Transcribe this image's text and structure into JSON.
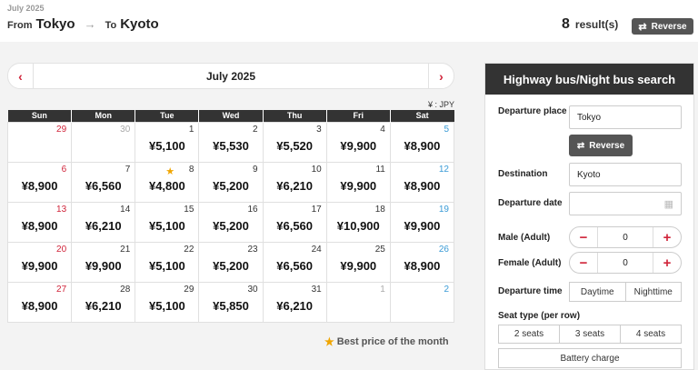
{
  "header": {
    "date_label": "July 2025",
    "from_label": "From",
    "from_city": "Tokyo",
    "arrow": "→",
    "to_label": "To",
    "to_city": "Kyoto",
    "result_count": "8",
    "result_label": "result(s)",
    "reverse_icon": "⇄",
    "reverse_label": "Reverse"
  },
  "calendar": {
    "title": "July 2025",
    "prev_icon": "‹",
    "next_icon": "›",
    "currency": "¥ : JPY",
    "weekdays": [
      "Sun",
      "Mon",
      "Tue",
      "Wed",
      "Thu",
      "Fri",
      "Sat"
    ],
    "weeks": [
      [
        {
          "day": "29",
          "price": "",
          "other": true
        },
        {
          "day": "30",
          "price": "",
          "other": true
        },
        {
          "day": "1",
          "price": "¥5,100"
        },
        {
          "day": "2",
          "price": "¥5,530"
        },
        {
          "day": "3",
          "price": "¥5,520"
        },
        {
          "day": "4",
          "price": "¥9,900"
        },
        {
          "day": "5",
          "price": "¥8,900"
        }
      ],
      [
        {
          "day": "6",
          "price": "¥8,900"
        },
        {
          "day": "7",
          "price": "¥6,560"
        },
        {
          "day": "8",
          "price": "¥4,800",
          "best": true
        },
        {
          "day": "9",
          "price": "¥5,200"
        },
        {
          "day": "10",
          "price": "¥6,210"
        },
        {
          "day": "11",
          "price": "¥9,900"
        },
        {
          "day": "12",
          "price": "¥8,900"
        }
      ],
      [
        {
          "day": "13",
          "price": "¥8,900"
        },
        {
          "day": "14",
          "price": "¥6,210"
        },
        {
          "day": "15",
          "price": "¥5,100"
        },
        {
          "day": "16",
          "price": "¥5,200"
        },
        {
          "day": "17",
          "price": "¥6,560"
        },
        {
          "day": "18",
          "price": "¥10,900"
        },
        {
          "day": "19",
          "price": "¥9,900"
        }
      ],
      [
        {
          "day": "20",
          "price": "¥9,900"
        },
        {
          "day": "21",
          "price": "¥9,900"
        },
        {
          "day": "22",
          "price": "¥5,100"
        },
        {
          "day": "23",
          "price": "¥5,200"
        },
        {
          "day": "24",
          "price": "¥6,560"
        },
        {
          "day": "25",
          "price": "¥9,900"
        },
        {
          "day": "26",
          "price": "¥8,900"
        }
      ],
      [
        {
          "day": "27",
          "price": "¥8,900"
        },
        {
          "day": "28",
          "price": "¥6,210"
        },
        {
          "day": "29",
          "price": "¥5,100"
        },
        {
          "day": "30",
          "price": "¥5,850"
        },
        {
          "day": "31",
          "price": "¥6,210"
        },
        {
          "day": "1",
          "price": "",
          "other": true
        },
        {
          "day": "2",
          "price": "",
          "other": true
        }
      ]
    ],
    "best_icon": "★",
    "best_label": "Best price of the month",
    "colors": {
      "sunday": "#d0243a",
      "saturday": "#3a9bd6",
      "star": "#f0a500"
    }
  },
  "search": {
    "title": "Highway bus/Night bus search",
    "departure_label": "Departure place",
    "departure_value": "Tokyo",
    "reverse_icon": "⇄",
    "reverse_label": "Reverse",
    "destination_label": "Destination",
    "destination_value": "Kyoto",
    "date_label": "Departure date",
    "date_value": "",
    "calendar_icon": "▦",
    "male_label": "Male (Adult)",
    "male_value": "0",
    "female_label": "Female (Adult)",
    "female_value": "0",
    "minus": "−",
    "plus": "+",
    "time_label": "Departure time",
    "time_options": [
      "Daytime",
      "Nighttime"
    ],
    "seat_label": "Seat type (per row)",
    "seat_options": [
      "2 seats",
      "3 seats",
      "4 seats"
    ],
    "battery_label": "Battery charge"
  }
}
